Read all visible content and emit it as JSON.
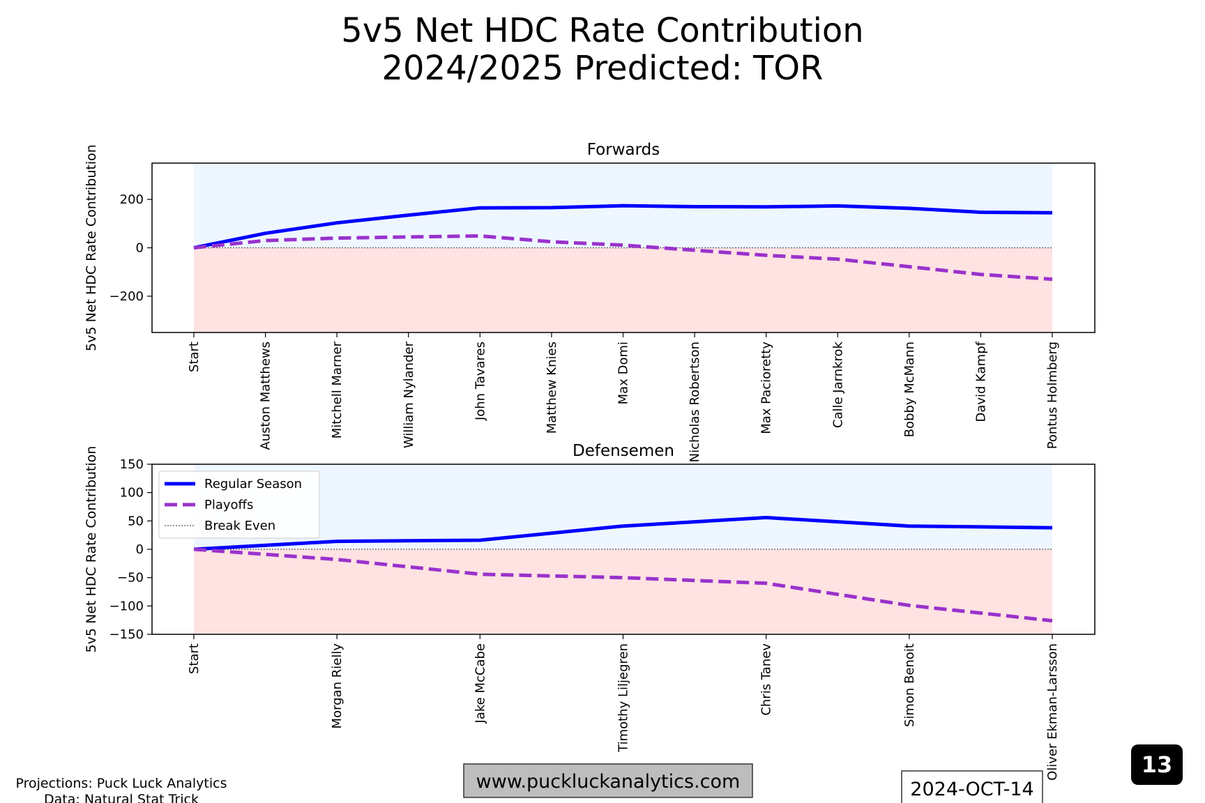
{
  "figure_title": [
    "5v5 Net HDC Rate Contribution",
    "2024/2025 Predicted: TOR"
  ],
  "footer": {
    "credits": [
      "Projections: Puck Luck Analytics",
      "Data: Natural Stat Trick"
    ],
    "website": "www.puckluckanalytics.com",
    "date": "2024-OCT-14",
    "page_badge": "13"
  },
  "colors": {
    "regular": "#0000ff",
    "playoffs": "#9932cc",
    "positive_fill": "#eef6ff",
    "negative_fill": "#ffe2e2",
    "break_even": "#555555",
    "web_box": "#bdbdbd"
  },
  "legend": {
    "placement": "upper-left of Defensemen panel",
    "entries": [
      "Regular Season",
      "Playoffs",
      "Break Even"
    ]
  },
  "chart_data": [
    {
      "type": "line",
      "title": "Forwards",
      "xlabel": "",
      "ylabel": "5v5 Net HDC Rate Contribution",
      "ylim": [
        -350,
        350
      ],
      "yticks": [
        -200,
        0,
        200
      ],
      "categories": [
        "Start",
        "Auston Matthews",
        "Mitchell Marner",
        "William Nylander",
        "John Tavares",
        "Matthew Knies",
        "Max Domi",
        "Nicholas Robertson",
        "Max Pacioretty",
        "Calle Jarnkrok",
        "Bobby McMann",
        "David Kampf",
        "Pontus Holmberg"
      ],
      "series": [
        {
          "name": "Regular Season",
          "style": "solid",
          "values": [
            0,
            60,
            103,
            135,
            165,
            166,
            174,
            170,
            169,
            173,
            163,
            147,
            145
          ]
        },
        {
          "name": "Playoffs",
          "style": "dashed",
          "values": [
            0,
            30,
            40,
            45,
            49,
            25,
            11,
            -10,
            -31,
            -47,
            -78,
            -110,
            -130
          ]
        }
      ],
      "break_even": 0
    },
    {
      "type": "line",
      "title": "Defensemen",
      "xlabel": "",
      "ylabel": "5v5 Net HDC Rate Contribution",
      "ylim": [
        -150,
        150
      ],
      "yticks": [
        -150,
        -100,
        -50,
        0,
        50,
        100,
        150
      ],
      "categories": [
        "Start",
        "Morgan Rielly",
        "Jake McCabe",
        "Timothy Liljegren",
        "Chris Tanev",
        "Simon Benoit",
        "Oliver Ekman-Larsson"
      ],
      "series": [
        {
          "name": "Regular Season",
          "style": "solid",
          "values": [
            0,
            14,
            16,
            41,
            56,
            41,
            38
          ]
        },
        {
          "name": "Playoffs",
          "style": "dashed",
          "values": [
            0,
            -18,
            -44,
            -50,
            -60,
            -99,
            -126
          ]
        }
      ],
      "break_even": 0
    }
  ]
}
